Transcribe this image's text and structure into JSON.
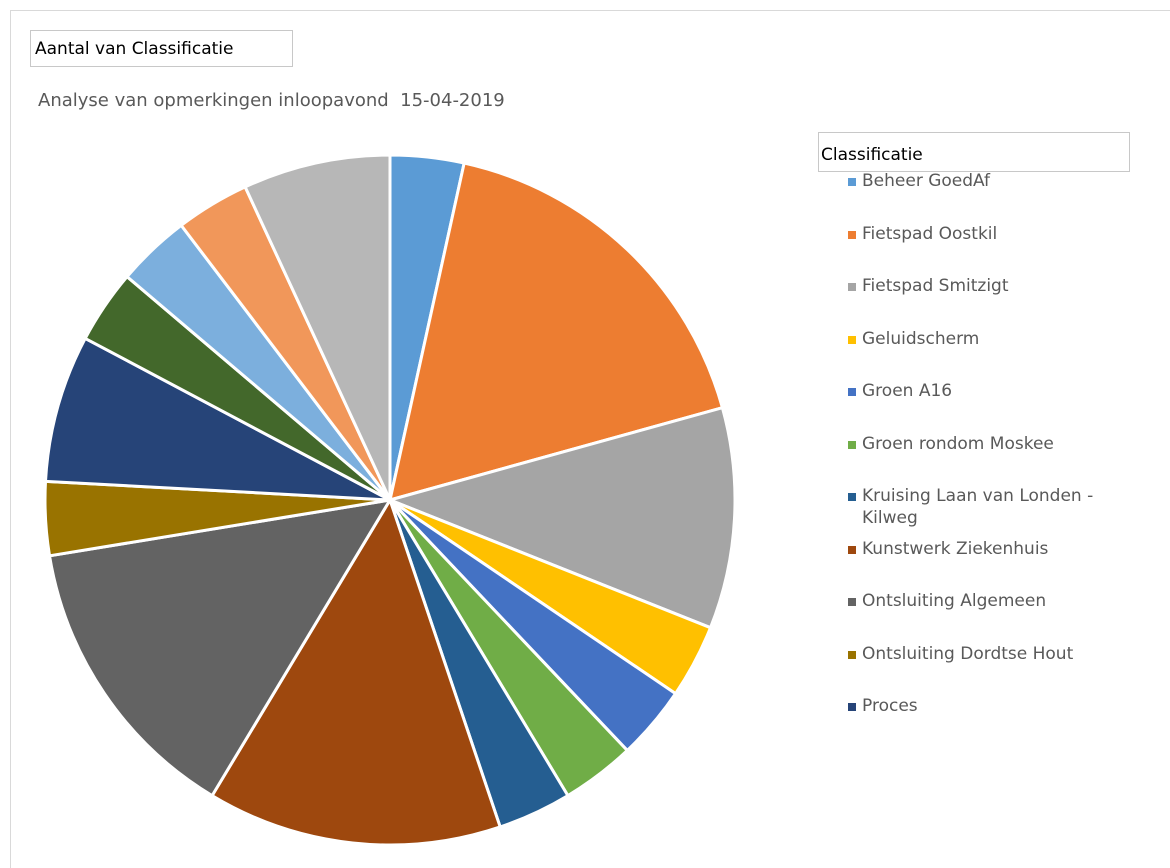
{
  "field_button": "Aantal van Classificatie",
  "chart_data": {
    "type": "pie",
    "title": "Analyse van opmerkingen inloopavond  15-04-2019",
    "legend_title": "Classificatie",
    "categories": [
      "Beheer GoedAf",
      "Fietspad Oostkil",
      "Fietspad Smitzigt",
      "Geluidscherm",
      "Groen A16",
      "Groen rondom Moskee",
      "Kruising Laan van Londen - Kilweg",
      "Kunstwerk Ziekenhuis",
      "Ontsluiting Algemeen",
      "Ontsluiting Dordtse Hout",
      "Proces",
      null,
      null,
      null,
      null
    ],
    "values": [
      1,
      5,
      3,
      1,
      1,
      1,
      1,
      4,
      4,
      1,
      2,
      1,
      1,
      1,
      2
    ],
    "colors": [
      "#5b9bd5",
      "#ed7d31",
      "#a5a5a5",
      "#ffc000",
      "#4472c4",
      "#70ad47",
      "#255e91",
      "#9e480e",
      "#636363",
      "#997300",
      "#264478",
      "#43682b",
      "#7cafdd",
      "#f1975a",
      "#b7b7b7"
    ],
    "legend": "right"
  }
}
